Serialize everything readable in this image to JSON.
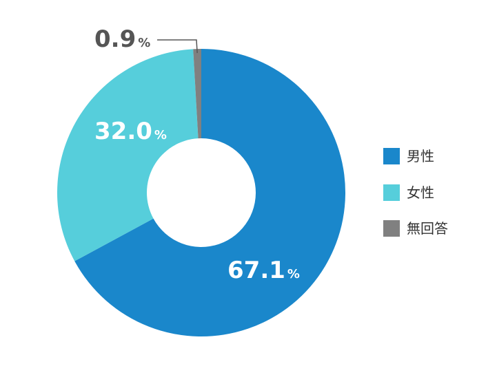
{
  "chart_data": {
    "type": "pie",
    "variant": "donut",
    "categories": [
      "男性",
      "女性",
      "無回答"
    ],
    "values": [
      67.1,
      32.0,
      0.9
    ],
    "unit": "%",
    "colors": [
      "#1a87cb",
      "#56cedb",
      "#808080"
    ],
    "labels": [
      "67.1",
      "32.0",
      "0.9"
    ],
    "legend_placement": "right"
  }
}
